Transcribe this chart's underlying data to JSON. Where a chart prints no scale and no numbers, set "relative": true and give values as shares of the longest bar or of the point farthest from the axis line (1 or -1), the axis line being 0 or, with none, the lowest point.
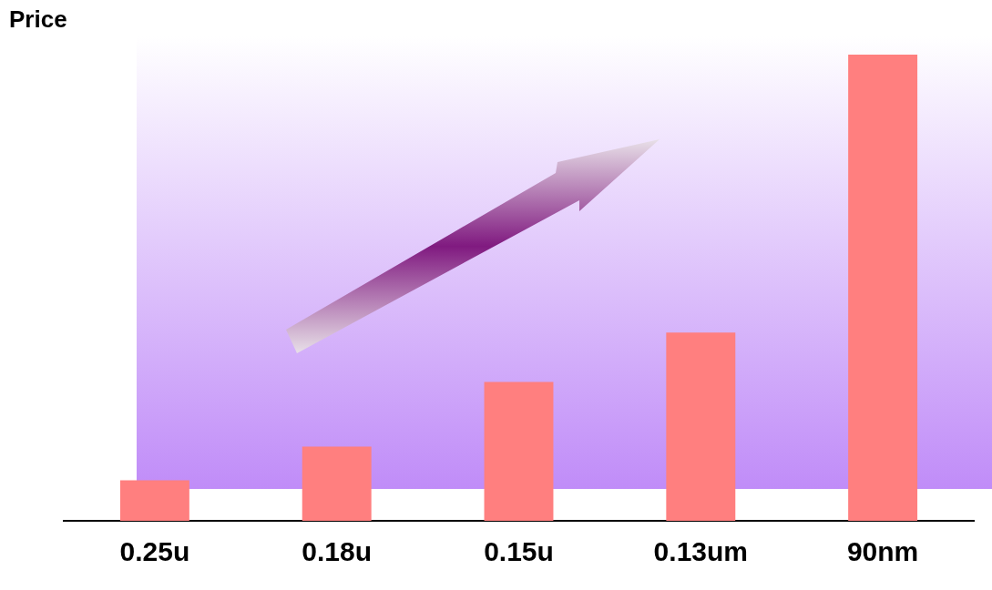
{
  "chart_data": {
    "type": "bar",
    "ylabel": "Price",
    "relative": true,
    "categories": [
      "0.25u",
      "0.18u",
      "0.15u",
      "0.13um",
      "90nm"
    ],
    "values": [
      0.087,
      0.159,
      0.298,
      0.404,
      1
    ],
    "color": "#ff7f7f",
    "grid": false,
    "legend": false
  }
}
